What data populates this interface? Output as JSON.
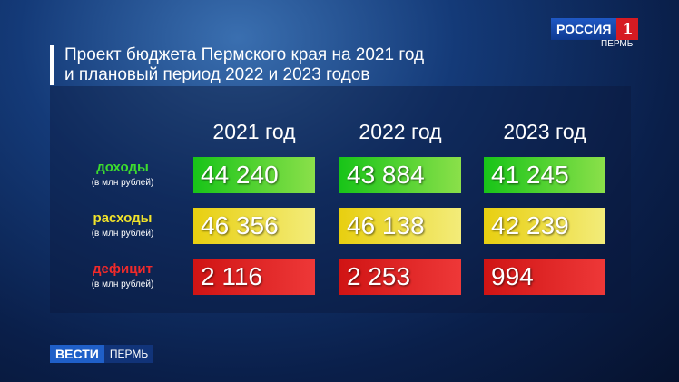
{
  "logo": {
    "channel": "РОССИЯ",
    "number": "1",
    "region": "ПЕРМЬ"
  },
  "title": {
    "lines": [
      "Проект бюджета Пермского края на 2021 год",
      "и плановый период 2022 и 2023 годов"
    ]
  },
  "table": {
    "columns": [
      "2021 год",
      "2022 год",
      "2023 год"
    ],
    "rows": [
      {
        "label": "доходы",
        "unit": "(в млн рублей)",
        "values": [
          "44 240",
          "43 884",
          "41 245"
        ]
      },
      {
        "label": "расходы",
        "unit": "(в млн рублей)",
        "values": [
          "46 356",
          "46 138",
          "42 239"
        ]
      },
      {
        "label": "дефицит",
        "unit": "(в млн рублей)",
        "values": [
          "2 116",
          "2 253",
          "994"
        ]
      }
    ]
  },
  "footer": {
    "brand": "ВЕСТИ",
    "region": "ПЕРМЬ"
  }
}
